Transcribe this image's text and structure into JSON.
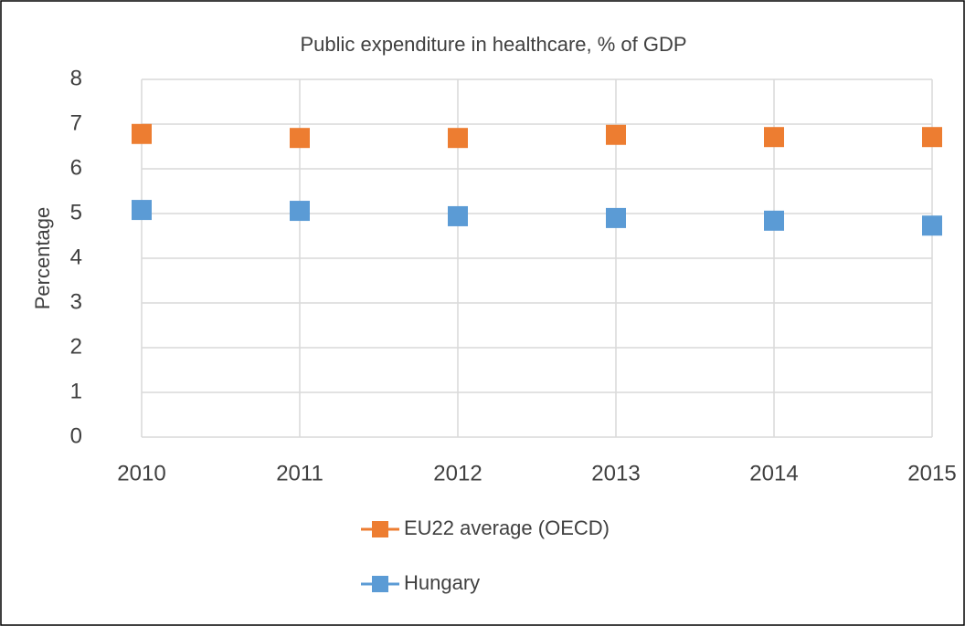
{
  "chart_data": {
    "type": "line",
    "title": "Public expenditure in healthcare, % of GDP",
    "y_label": "Percentage",
    "categories": [
      "2010",
      "2011",
      "2012",
      "2013",
      "2014",
      "2015"
    ],
    "series": [
      {
        "name": "EU22 average (OECD)",
        "color": "#ed7d31",
        "values": [
          6.78,
          6.69,
          6.69,
          6.76,
          6.71,
          6.71
        ]
      },
      {
        "name": "Hungary",
        "color": "#5b9bd5",
        "values": [
          5.08,
          5.06,
          4.94,
          4.9,
          4.84,
          4.73
        ]
      }
    ],
    "ylim": [
      0,
      8
    ],
    "yticks": [
      0,
      1,
      2,
      3,
      4,
      5,
      6,
      7,
      8
    ],
    "grid": true,
    "legend": "bottom"
  }
}
